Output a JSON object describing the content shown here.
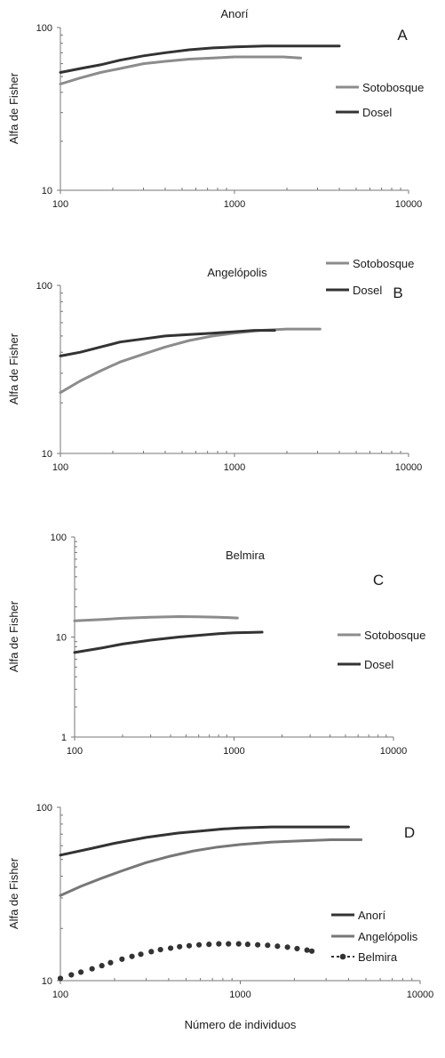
{
  "chart_data": [
    {
      "type": "line",
      "panel_label": "A",
      "title": "Anorí",
      "xlabel": "",
      "ylabel": "Alfa de Fisher",
      "xscale": "log",
      "yscale": "log",
      "xlim": [
        100,
        10000
      ],
      "ylim": [
        10,
        100
      ],
      "xticks": [
        100,
        1000,
        10000
      ],
      "xtick_labels": [
        "100",
        "1000",
        "10000"
      ],
      "yticks": [
        10,
        100
      ],
      "ytick_labels": [
        "10",
        "100"
      ],
      "grid": false,
      "legend_position": "right",
      "series": [
        {
          "name": "Sotobosque",
          "color": "#8c8c8c",
          "marker": "none",
          "dashed": false,
          "x": [
            100,
            130,
            170,
            220,
            300,
            400,
            550,
            750,
            1000,
            1400,
            1900,
            2400
          ],
          "y": [
            45,
            49,
            53,
            56,
            60,
            62,
            64,
            65,
            66,
            66,
            66,
            65
          ]
        },
        {
          "name": "Dosel",
          "color": "#333333",
          "marker": "none",
          "dashed": false,
          "x": [
            100,
            130,
            170,
            220,
            300,
            400,
            550,
            750,
            1000,
            1500,
            2200,
            3000,
            4000
          ],
          "y": [
            53,
            56,
            59,
            63,
            67,
            70,
            73,
            75,
            76,
            77,
            77,
            77,
            77
          ]
        }
      ]
    },
    {
      "type": "line",
      "panel_label": "B",
      "title": "Angelópolis",
      "xlabel": "",
      "ylabel": "Alfa de Fisher",
      "xscale": "log",
      "yscale": "log",
      "xlim": [
        100,
        10000
      ],
      "ylim": [
        10,
        100
      ],
      "xticks": [
        100,
        1000,
        10000
      ],
      "xtick_labels": [
        "100",
        "1000",
        "10000"
      ],
      "yticks": [
        10,
        100
      ],
      "ytick_labels": [
        "10",
        "100"
      ],
      "grid": false,
      "legend_position": "right",
      "series": [
        {
          "name": "Sotobosque",
          "color": "#8c8c8c",
          "marker": "none",
          "dashed": false,
          "x": [
            100,
            130,
            170,
            220,
            300,
            400,
            550,
            750,
            1000,
            1400,
            2000,
            3100
          ],
          "y": [
            23,
            27,
            31,
            35,
            39,
            43,
            47,
            50,
            52,
            54,
            55,
            55
          ]
        },
        {
          "name": "Dosel",
          "color": "#333333",
          "marker": "none",
          "dashed": false,
          "x": [
            100,
            130,
            170,
            220,
            300,
            400,
            550,
            750,
            1000,
            1300,
            1700
          ],
          "y": [
            38,
            40,
            43,
            46,
            48,
            50,
            51,
            52,
            53,
            54,
            54
          ]
        }
      ]
    },
    {
      "type": "line",
      "panel_label": "C",
      "title": "Belmira",
      "xlabel": "",
      "ylabel": "Alfa de Fisher",
      "xscale": "log",
      "yscale": "log",
      "xlim": [
        100,
        10000
      ],
      "ylim": [
        1,
        100
      ],
      "xticks": [
        100,
        1000,
        10000
      ],
      "xtick_labels": [
        "100",
        "1000",
        "10000"
      ],
      "yticks": [
        1,
        10,
        100
      ],
      "ytick_labels": [
        "1",
        "10",
        "100"
      ],
      "grid": false,
      "legend_position": "right",
      "series": [
        {
          "name": "Sotobosque",
          "color": "#8c8c8c",
          "marker": "none",
          "dashed": false,
          "x": [
            100,
            150,
            200,
            300,
            450,
            600,
            800,
            1050
          ],
          "y": [
            14.5,
            15,
            15.4,
            15.8,
            16,
            15.9,
            15.8,
            15.5
          ]
        },
        {
          "name": "Dosel",
          "color": "#333333",
          "marker": "none",
          "dashed": false,
          "x": [
            100,
            150,
            200,
            300,
            450,
            600,
            800,
            1000,
            1250,
            1500
          ],
          "y": [
            7,
            7.8,
            8.5,
            9.3,
            10,
            10.4,
            10.8,
            11,
            11.1,
            11.2
          ]
        }
      ]
    },
    {
      "type": "line",
      "panel_label": "D",
      "title": "",
      "xlabel": "Número de individuos",
      "ylabel": "Alfa de Fisher",
      "xscale": "log",
      "yscale": "log",
      "xlim": [
        100,
        10000
      ],
      "ylim": [
        10,
        100
      ],
      "xticks": [
        100,
        1000,
        10000
      ],
      "xtick_labels": [
        "100",
        "1000",
        "10000"
      ],
      "yticks": [
        10,
        100
      ],
      "ytick_labels": [
        "10",
        "100"
      ],
      "grid": false,
      "legend_position": "right",
      "series": [
        {
          "name": "Anorí",
          "color": "#333333",
          "marker": "none",
          "dashed": false,
          "x": [
            100,
            150,
            200,
            300,
            450,
            600,
            800,
            1000,
            1500,
            2000,
            3000,
            4000
          ],
          "y": [
            53,
            58,
            62,
            67,
            71,
            73,
            75,
            76,
            77,
            77,
            77,
            77
          ]
        },
        {
          "name": "Angelópolis",
          "color": "#777777",
          "marker": "none",
          "dashed": false,
          "x": [
            100,
            130,
            170,
            220,
            300,
            400,
            550,
            750,
            1000,
            1500,
            2200,
            3200,
            4700
          ],
          "y": [
            31,
            35,
            39,
            43,
            48,
            52,
            56,
            59,
            61,
            63,
            64,
            65,
            65
          ]
        },
        {
          "name": "Belmira",
          "color": "#333333",
          "marker": "circle",
          "dashed": true,
          "x": [
            100,
            115,
            130,
            150,
            170,
            190,
            220,
            250,
            280,
            320,
            360,
            410,
            460,
            520,
            590,
            670,
            760,
            860,
            980,
            1100,
            1250,
            1420,
            1610,
            1830,
            2070,
            2350,
            2500
          ],
          "y": [
            10.3,
            10.8,
            11.2,
            11.7,
            12.2,
            12.7,
            13.3,
            13.8,
            14.2,
            14.7,
            15.1,
            15.4,
            15.7,
            15.9,
            16.1,
            16.2,
            16.3,
            16.3,
            16.3,
            16.2,
            16.1,
            16,
            15.8,
            15.6,
            15.3,
            15,
            14.8
          ]
        }
      ]
    }
  ]
}
